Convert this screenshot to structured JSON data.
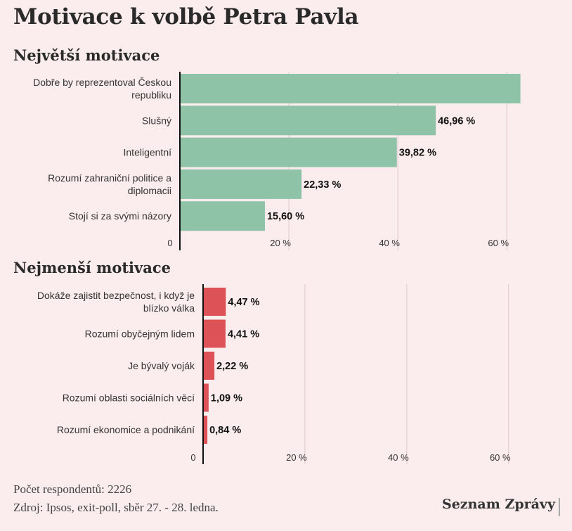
{
  "title": "Motivace k volbě Petra Pavla",
  "footer": {
    "respondents": "Počet respondentů: 2226",
    "source": "Zdroj: Ipsos, exit-poll, sběr 27. - 28. ledna.",
    "brand": "Seznam Zprávy"
  },
  "colors": {
    "top": "#8fc3a8",
    "bottom": "#dd5257",
    "background": "#fbeced"
  },
  "chart_data": [
    {
      "type": "bar",
      "orientation": "horizontal",
      "title": "Největší motivace",
      "categories": [
        "Dobře by reprezentoval Českou republiku",
        "Slušný",
        "Inteligentní",
        "Rozumí zahraniční politice a diplomacii",
        "Stojí si za svými názory"
      ],
      "label_lines": [
        [
          "Dobře by reprezentoval Českou",
          "republiku"
        ],
        [
          "Slušný"
        ],
        [
          "Inteligentní"
        ],
        [
          "Rozumí zahraniční politice a",
          "diplomacii"
        ],
        [
          "Stojí si za svými názory"
        ]
      ],
      "values": [
        62.5,
        46.96,
        39.82,
        22.33,
        15.6
      ],
      "value_labels": [
        "",
        "46,96 %",
        "39,82 %",
        "22,33 %",
        "15,60 %"
      ],
      "xlim": [
        0,
        65
      ],
      "ticks": [
        0,
        20,
        40,
        60
      ],
      "tick_labels": [
        "0",
        "20 %",
        "40 %",
        "60 %"
      ],
      "grid": true,
      "color": "#8fc3a8"
    },
    {
      "type": "bar",
      "orientation": "horizontal",
      "title": "Nejmenší motivace",
      "categories": [
        "Dokáže zajistit bezpečnost, i když je blízko válka",
        "Rozumí obyčejným lidem",
        "Je bývalý voják",
        "Rozumí oblasti sociálních věcí",
        "Rozumí ekonomice a podnikání"
      ],
      "label_lines": [
        [
          "Dokáže zajistit bezpečnost, i když je",
          "blízko válka"
        ],
        [
          "Rozumí obyčejným lidem"
        ],
        [
          "Je bývalý voják"
        ],
        [
          "Rozumí oblasti sociálních věcí"
        ],
        [
          "Rozumí ekonomice a podnikání"
        ]
      ],
      "values": [
        4.47,
        4.41,
        2.22,
        1.09,
        0.84
      ],
      "value_labels": [
        "4,47 %",
        "4,41 %",
        "2,22 %",
        "1,09 %",
        "0,84 %"
      ],
      "xlim": [
        0,
        65
      ],
      "ticks": [
        0,
        20,
        40,
        60
      ],
      "tick_labels": [
        "0",
        "20 %",
        "40 %",
        "60 %"
      ],
      "grid": true,
      "color": "#dd5257"
    }
  ]
}
